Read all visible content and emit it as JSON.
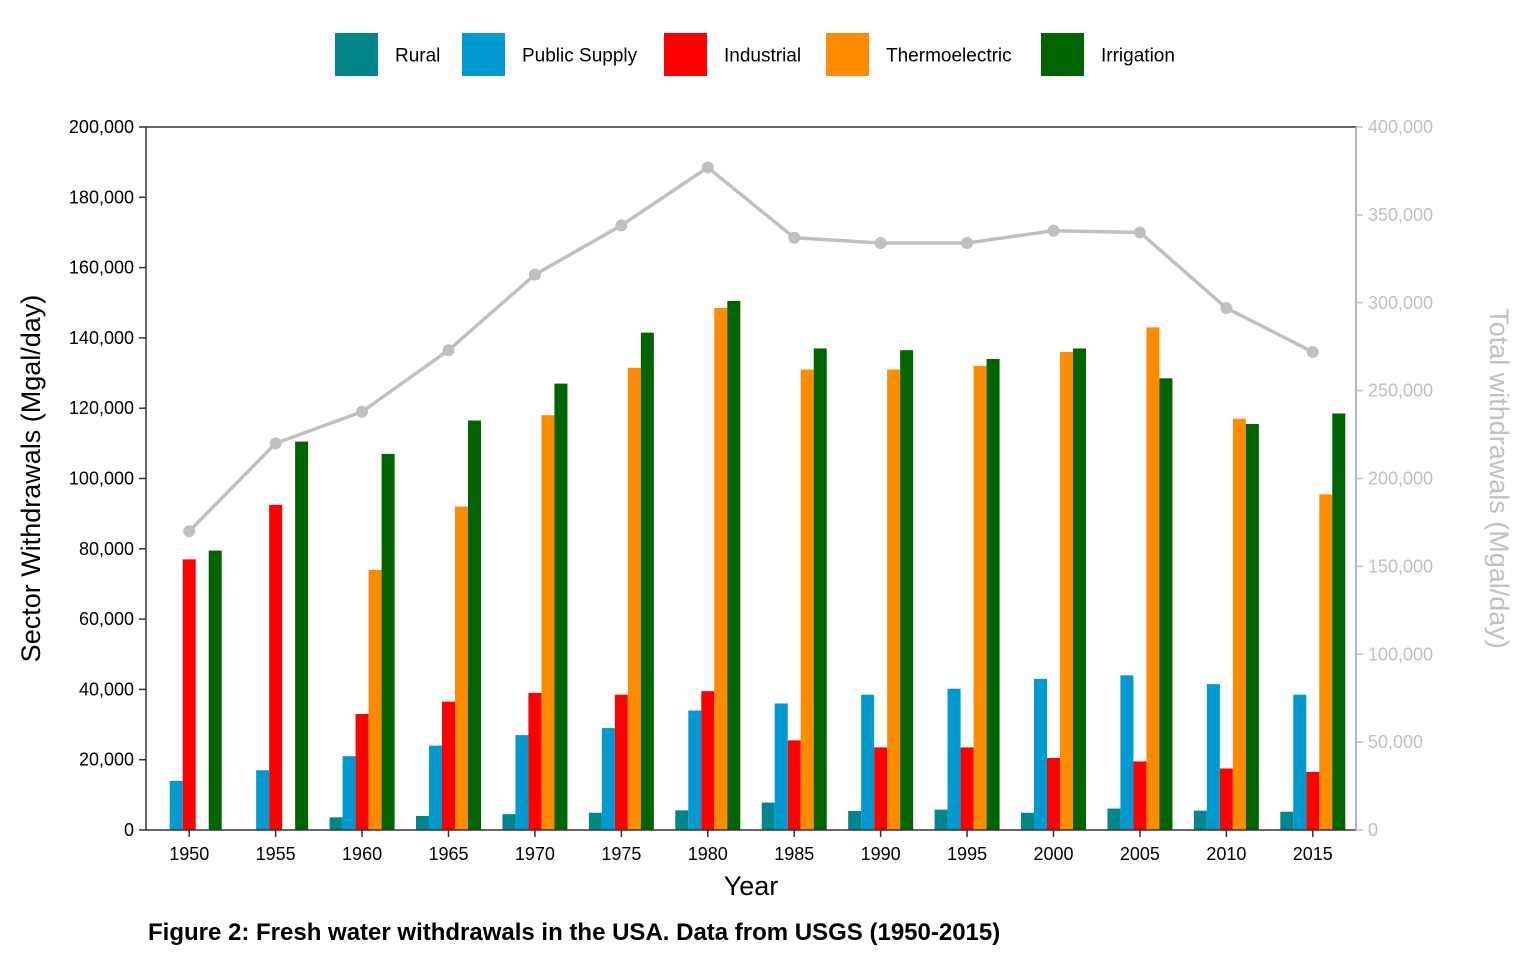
{
  "chart_data": {
    "type": "bar",
    "caption": "Figure 2: Fresh water withdrawals in the USA. Data from USGS (1950-2015)",
    "xlabel": "Year",
    "ylabel": "Sector Withdrawals (Mgal/day)",
    "y2label": "Total withdrawals (Mgal/day)",
    "ylim": [
      0,
      200000
    ],
    "y2lim": [
      0,
      400000
    ],
    "yticks": [
      0,
      20000,
      40000,
      60000,
      80000,
      100000,
      120000,
      140000,
      160000,
      180000,
      200000
    ],
    "y2ticks": [
      0,
      50000,
      100000,
      150000,
      200000,
      250000,
      300000,
      350000,
      400000
    ],
    "grid": false,
    "legend_position": "top",
    "categories": [
      "1950",
      "1955",
      "1960",
      "1965",
      "1970",
      "1975",
      "1980",
      "1985",
      "1990",
      "1995",
      "2000",
      "2005",
      "2010",
      "2015"
    ],
    "series": [
      {
        "name": "Rural",
        "color": "#00868b",
        "values": [
          null,
          null,
          3600,
          4000,
          4500,
          4900,
          5600,
          7800,
          5400,
          5800,
          4900,
          6100,
          5500,
          5200
        ]
      },
      {
        "name": "Public Supply",
        "color": "#0099d0",
        "values": [
          14000,
          17000,
          21000,
          24000,
          27000,
          29000,
          34000,
          36000,
          38500,
          40200,
          43000,
          44000,
          41500,
          38500
        ]
      },
      {
        "name": "Industrial",
        "color": "#ff0000",
        "values": [
          77000,
          92500,
          33000,
          36500,
          39000,
          38500,
          39500,
          25500,
          23500,
          23500,
          20500,
          19500,
          17500,
          16500
        ]
      },
      {
        "name": "Thermoelectric",
        "color": "#ff8c00",
        "values": [
          null,
          null,
          74000,
          92000,
          118000,
          131500,
          148500,
          131000,
          131000,
          132000,
          136000,
          143000,
          117000,
          95500
        ]
      },
      {
        "name": "Irrigation",
        "color": "#006400",
        "values": [
          79500,
          110500,
          107000,
          116500,
          127000,
          141500,
          150500,
          137000,
          136500,
          134000,
          137000,
          128500,
          115500,
          118500
        ]
      }
    ],
    "total_line": {
      "axis": "right",
      "color": "#c0c0c0",
      "values": [
        170000,
        220000,
        238000,
        273000,
        316000,
        344000,
        377000,
        337000,
        334000,
        334000,
        341000,
        340000,
        297000,
        272000
      ]
    }
  }
}
